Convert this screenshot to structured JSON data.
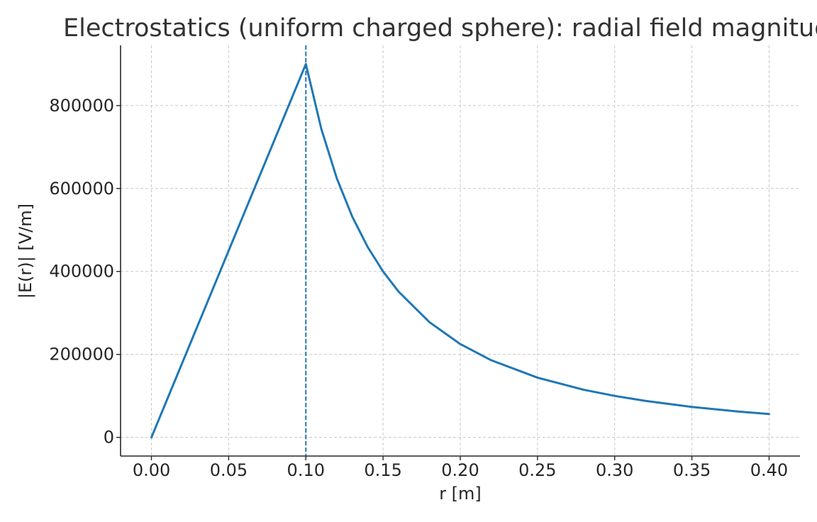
{
  "chart_data": {
    "type": "line",
    "title": "Electrostatics (uniform charged sphere): radial field magnitude",
    "xlabel": "r [m]",
    "ylabel": "|E(r)| [V/m]",
    "xlim": [
      -0.02,
      0.42
    ],
    "ylim": [
      -45000,
      945000
    ],
    "x_ticks": [
      0.0,
      0.05,
      0.1,
      0.15,
      0.2,
      0.25,
      0.3,
      0.35,
      0.4
    ],
    "x_tick_labels": [
      "0.00",
      "0.05",
      "0.10",
      "0.15",
      "0.20",
      "0.25",
      "0.30",
      "0.35",
      "0.40"
    ],
    "y_ticks": [
      0,
      200000,
      400000,
      600000,
      800000
    ],
    "y_tick_labels": [
      "0",
      "200000",
      "400000",
      "600000",
      "800000"
    ],
    "grid": true,
    "color": "#1f77b4",
    "series": [
      {
        "x": [
          0.0,
          0.02,
          0.04,
          0.06,
          0.08,
          0.1,
          0.11,
          0.12,
          0.13,
          0.14,
          0.15,
          0.16,
          0.18,
          0.2,
          0.22,
          0.25,
          0.28,
          0.3,
          0.32,
          0.35,
          0.38,
          0.4
        ],
        "y": [
          0,
          180000,
          360000,
          540000,
          720000,
          900000,
          743800,
          625000,
          532500,
          459200,
          400000,
          351600,
          277800,
          225000,
          186000,
          144000,
          114800,
          100000,
          87900,
          73500,
          62300,
          56250
        ]
      }
    ],
    "annotations": [
      {
        "type": "vline",
        "x": 0.1,
        "style": "dashed"
      }
    ]
  }
}
